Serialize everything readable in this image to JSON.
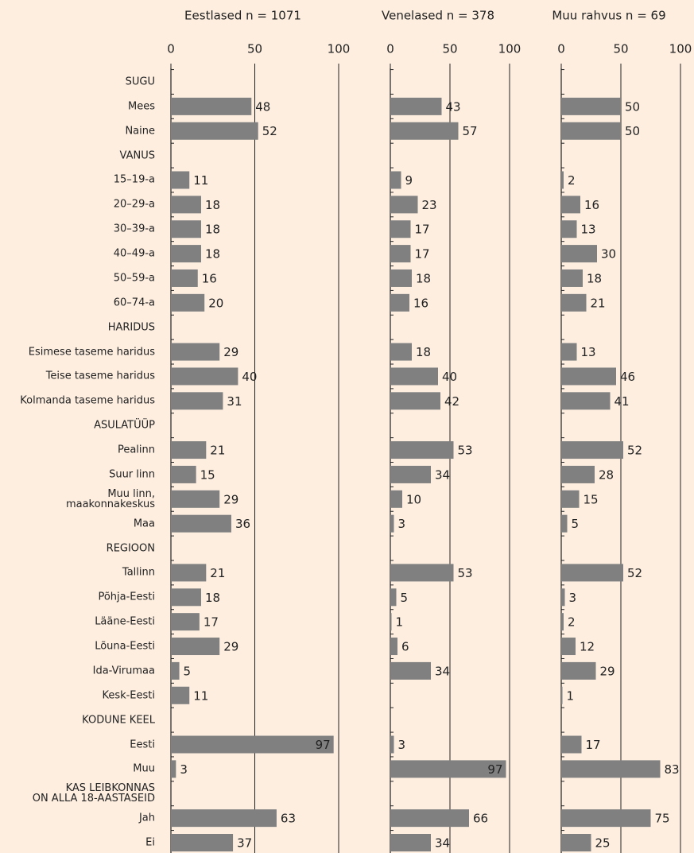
{
  "chart_data": {
    "type": "bar",
    "orientation": "horizontal",
    "categories": [
      "SUGU",
      "Mees",
      "Naine",
      "VANUS",
      "15–19-a",
      "20–29-a",
      "30–39-a",
      "40–49-a",
      "50–59-a",
      "60–74-a",
      "HARIDUS",
      "Esimese taseme haridus",
      "Teise taseme haridus",
      "Kolmanda taseme haridus",
      "ASULATÜÜP",
      "Pealinn",
      "Suur linn",
      "Muu linn,\nmaakonnakeskus",
      "Maa",
      "REGIOON",
      "Tallinn",
      "Põhja-Eesti",
      "Lääne-Eesti",
      "Lõuna-Eesti",
      "Ida-Virumaa",
      "Kesk-Eesti",
      "KODUNE KEEL",
      "Eesti",
      "Muu",
      "KAS LEIBKONNAS\nON ALLA 18-AASTASEID",
      "Jah",
      "Ei"
    ],
    "series": [
      {
        "name": "Eestlased n = 1071",
        "color": "#808080",
        "values": [
          null,
          48,
          52,
          null,
          11,
          18,
          18,
          18,
          16,
          20,
          null,
          29,
          40,
          31,
          null,
          21,
          15,
          29,
          36,
          null,
          21,
          18,
          17,
          29,
          5,
          11,
          null,
          97,
          3,
          null,
          63,
          37
        ]
      },
      {
        "name": "Venelased n = 378",
        "color": "#808080",
        "values": [
          null,
          43,
          57,
          null,
          9,
          23,
          17,
          17,
          18,
          16,
          null,
          18,
          40,
          42,
          null,
          53,
          34,
          10,
          3,
          null,
          53,
          5,
          1,
          6,
          34,
          null,
          null,
          3,
          97,
          null,
          66,
          34
        ]
      },
      {
        "name": "Muu rahvus n = 69",
        "color": "#808080",
        "values": [
          null,
          50,
          50,
          null,
          2,
          16,
          13,
          30,
          18,
          21,
          null,
          13,
          46,
          41,
          null,
          52,
          28,
          15,
          5,
          null,
          52,
          3,
          2,
          12,
          29,
          1,
          null,
          17,
          83,
          null,
          75,
          25
        ]
      }
    ],
    "xlim": [
      0,
      100
    ],
    "xticks": [
      0,
      50,
      100
    ],
    "grid": true
  }
}
